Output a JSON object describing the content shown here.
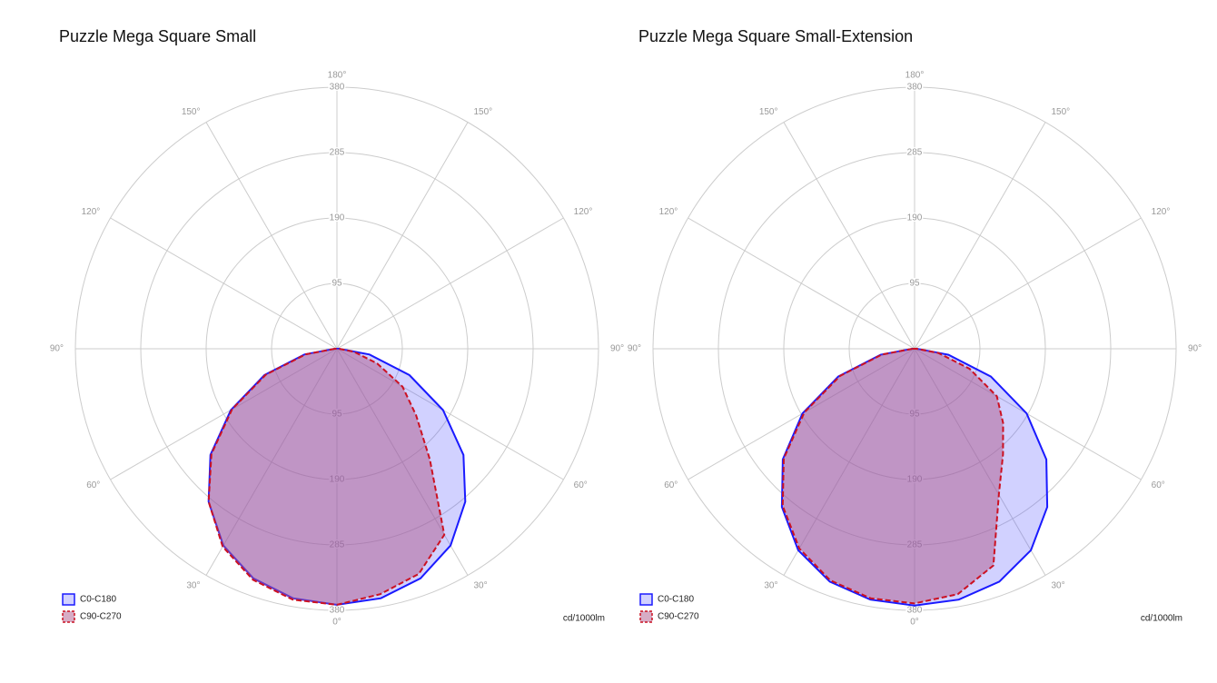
{
  "chart_data": [
    {
      "type": "polar",
      "title": "Puzzle Mega Square Small",
      "x": [
        -90,
        -80,
        -70,
        -60,
        -50,
        -40,
        -30,
        -20,
        -10,
        0,
        10,
        20,
        30,
        40,
        50,
        60,
        70,
        80,
        90
      ],
      "series": [
        {
          "name": "C0-C180",
          "color": "#1a1aff",
          "line_style": "solid",
          "values": [
            3,
            48,
            112,
            178,
            240,
            290,
            330,
            355,
            368,
            372,
            368,
            355,
            330,
            290,
            240,
            178,
            112,
            48,
            3
          ]
        },
        {
          "name": "C90-C270",
          "color": "#cc1122",
          "line_style": "dashed",
          "values": [
            3,
            46,
            110,
            176,
            238,
            290,
            332,
            357,
            370,
            372,
            362,
            348,
            312,
            210,
            150,
            110,
            62,
            25,
            3
          ]
        }
      ],
      "ylim": [
        0,
        380
      ],
      "yticks": [
        95,
        190,
        285,
        380
      ],
      "xticks": [
        {
          "value": -150,
          "label": "150°"
        },
        {
          "value": -120,
          "label": "120°"
        },
        {
          "value": -90,
          "label": "90°"
        },
        {
          "value": -60,
          "label": "60°"
        },
        {
          "value": -30,
          "label": "30°"
        },
        {
          "value": 0,
          "label": "0°"
        },
        {
          "value": 30,
          "label": "30°"
        },
        {
          "value": 60,
          "label": "60°"
        },
        {
          "value": 90,
          "label": "90°"
        },
        {
          "value": 120,
          "label": "120°"
        },
        {
          "value": 150,
          "label": "150°"
        },
        {
          "value": 180,
          "label": "180°"
        }
      ],
      "unit_label": "cd/1000lm",
      "grid": true,
      "legend": "lower left"
    },
    {
      "type": "polar",
      "title": "Puzzle Mega Square Small-Extension",
      "x": [
        -90,
        -80,
        -70,
        -60,
        -50,
        -40,
        -30,
        -20,
        -10,
        0,
        10,
        20,
        30,
        40,
        50,
        60,
        70,
        80,
        90
      ],
      "series": [
        {
          "name": "C0-C180",
          "color": "#1a1aff",
          "line_style": "solid",
          "values": [
            3,
            50,
            118,
            188,
            250,
            300,
            338,
            360,
            370,
            373,
            370,
            360,
            338,
            300,
            250,
            188,
            118,
            50,
            3
          ]
        },
        {
          "name": "C90-C270",
          "color": "#cc1122",
          "line_style": "dashed",
          "values": [
            3,
            48,
            115,
            185,
            248,
            298,
            335,
            358,
            368,
            370,
            362,
            335,
            245,
            200,
            168,
            138,
            85,
            35,
            3
          ]
        }
      ],
      "ylim": [
        0,
        380
      ],
      "yticks": [
        95,
        190,
        285,
        380
      ],
      "xticks": [
        {
          "value": -150,
          "label": "150°"
        },
        {
          "value": -120,
          "label": "120°"
        },
        {
          "value": -90,
          "label": "90°"
        },
        {
          "value": -60,
          "label": "60°"
        },
        {
          "value": -30,
          "label": "30°"
        },
        {
          "value": 0,
          "label": "0°"
        },
        {
          "value": 30,
          "label": "30°"
        },
        {
          "value": 60,
          "label": "60°"
        },
        {
          "value": 90,
          "label": "90°"
        },
        {
          "value": 120,
          "label": "120°"
        },
        {
          "value": 150,
          "label": "150°"
        },
        {
          "value": 180,
          "label": "180°"
        }
      ],
      "unit_label": "cd/1000lm",
      "grid": true,
      "legend": "lower left"
    }
  ]
}
